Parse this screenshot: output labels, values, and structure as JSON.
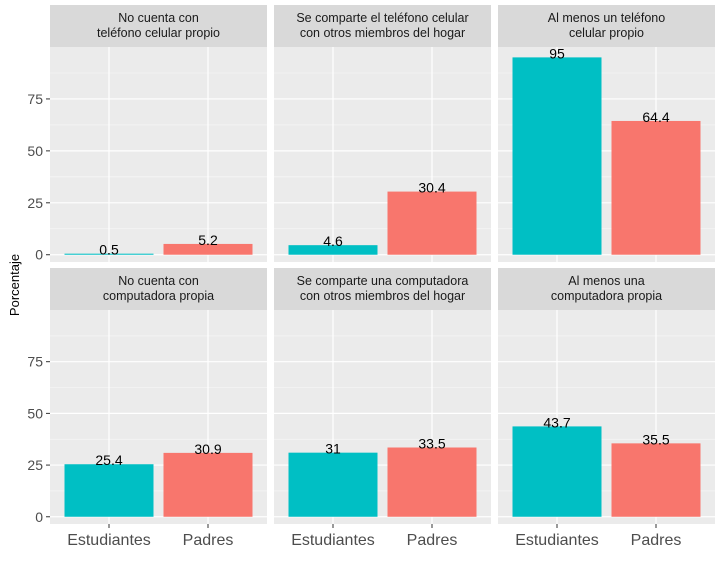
{
  "chart_data": {
    "type": "bar",
    "facet": true,
    "ylabel": "Porcentaje",
    "xlabel": "",
    "categories": [
      "Estudiantes",
      "Padres"
    ],
    "colors": {
      "Estudiantes": "#00BFC4",
      "Padres": "#F8766D"
    },
    "yticks": [
      0,
      25,
      50,
      75
    ],
    "ylim": [
      -3.5,
      100
    ],
    "grid": true,
    "legend": "none",
    "panels": [
      {
        "title": [
          "No cuenta con",
          "teléfono celular propio"
        ],
        "values": [
          0.5,
          5.2
        ]
      },
      {
        "title": [
          "Se comparte el teléfono celular",
          "con otros miembros del hogar"
        ],
        "values": [
          4.6,
          30.4
        ]
      },
      {
        "title": [
          "Al menos un teléfono",
          "celular propio"
        ],
        "values": [
          95,
          64.4
        ]
      },
      {
        "title": [
          "No cuenta con",
          "computadora propia"
        ],
        "values": [
          25.4,
          30.9
        ]
      },
      {
        "title": [
          "Se comparte una computadora",
          "con otros miembros del hogar"
        ],
        "values": [
          31,
          33.5
        ]
      },
      {
        "title": [
          "Al menos una",
          "computadora propia"
        ],
        "values": [
          43.7,
          35.5
        ]
      }
    ]
  }
}
